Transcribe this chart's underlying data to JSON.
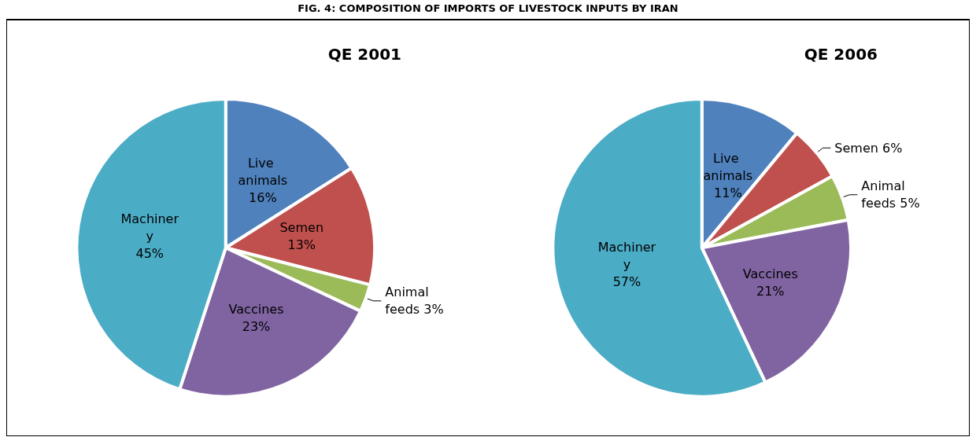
{
  "chart_data": [
    {
      "type": "pie",
      "title": "QE 2001",
      "annotations": [
        "FIG. 4: COMPOSITION OF IMPORTS OF LIVESTOCK INPUTS BY IRAN"
      ],
      "categories": [
        "Live animals",
        "Semen",
        "Animal feeds",
        "Vaccines",
        "Machinery"
      ],
      "values": [
        16,
        13,
        3,
        23,
        45
      ],
      "value_labels": [
        "16%",
        "13%",
        "3%",
        "23%",
        "45%"
      ],
      "colors": [
        "#4f81bd",
        "#c0504d",
        "#9bbb59",
        "#8064a2",
        "#4bacc6"
      ],
      "legend": false
    },
    {
      "type": "pie",
      "title": "QE 2006",
      "categories": [
        "Live animals",
        "Semen",
        "Animal feeds",
        "Vaccines",
        "Machinery"
      ],
      "values": [
        11,
        6,
        5,
        21,
        57
      ],
      "value_labels": [
        "11%",
        "6%",
        "5%",
        "21%",
        "57%"
      ],
      "colors": [
        "#4f81bd",
        "#c0504d",
        "#9bbb59",
        "#8064a2",
        "#4bacc6"
      ],
      "legend": false
    }
  ]
}
